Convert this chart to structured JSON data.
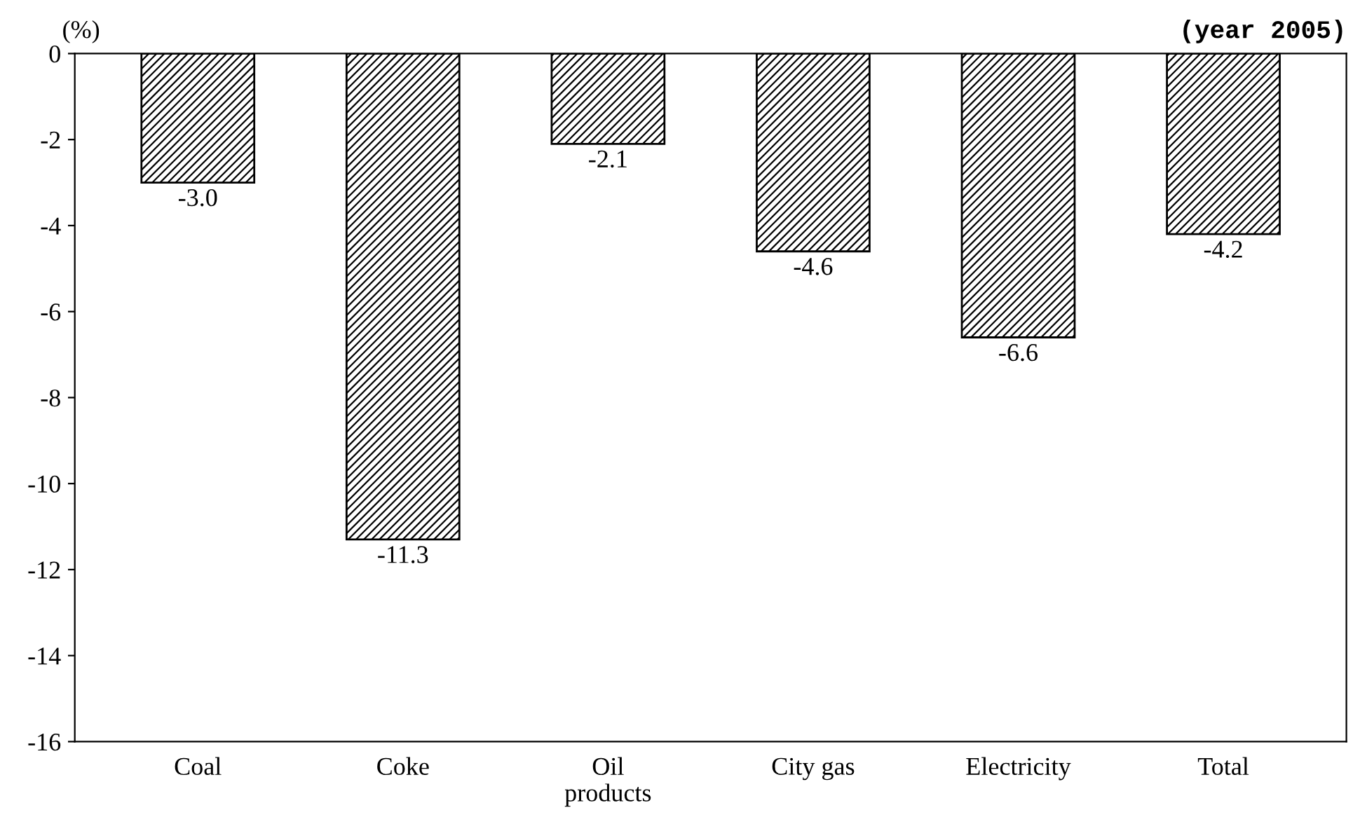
{
  "chart_data": {
    "type": "bar",
    "ylabel": "(%)",
    "annotations": [
      "(year 2005)"
    ],
    "categories": [
      "Coal",
      "Coke",
      "Oil\nproducts",
      "City gas",
      "Electricity",
      "Total"
    ],
    "values": [
      -3.0,
      -11.3,
      -2.1,
      -4.6,
      -6.6,
      -4.2
    ],
    "value_labels": [
      "-3.0",
      "-11.3",
      "-2.1",
      "-4.6",
      "-6.6",
      "-4.2"
    ],
    "color": "#000000",
    "ylim": [
      -16,
      0
    ],
    "yticks": [
      0,
      -2,
      -4,
      -6,
      -8,
      -10,
      -12,
      -14,
      -16
    ],
    "grid": false,
    "legend": false
  }
}
